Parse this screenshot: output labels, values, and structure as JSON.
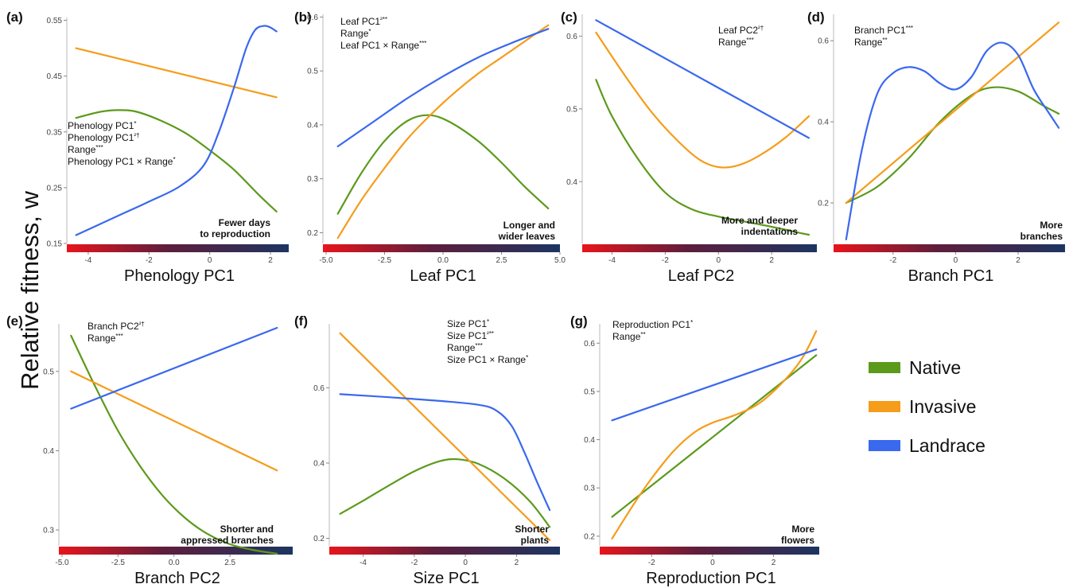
{
  "figure": {
    "ylabel": "Relative fitness, w",
    "legend": [
      {
        "name": "Native",
        "color": "#5c9a1c"
      },
      {
        "name": "Invasive",
        "color": "#f59c1a"
      },
      {
        "name": "Landrace",
        "color": "#3a68ee"
      }
    ]
  },
  "chart_data": [
    {
      "type": "line",
      "panel": "(a)",
      "xlabel": "Phenology PC1",
      "xlim": [
        -4.6,
        2.6
      ],
      "ylim": [
        0.15,
        0.555
      ],
      "xticks": [
        -4,
        -2,
        0,
        2
      ],
      "xtick_labels": [
        "-4",
        "-2",
        "0",
        "2"
      ],
      "yticks": [
        0.15,
        0.25,
        0.35,
        0.45,
        0.55
      ],
      "ytick_labels": [
        "0.15",
        "0.25",
        "0.35",
        "0.45",
        "0.55"
      ],
      "annotations": [
        "Phenology PC1*",
        "Phenology PC1²†",
        "Range***",
        "Phenology PC1 × Range*"
      ],
      "gradient_label": [
        "Fewer days",
        "to reproduction"
      ],
      "series": [
        {
          "name": "Native",
          "x": [
            -4.4,
            -3.6,
            -3.0,
            -2.4,
            -1.6,
            -0.8,
            0.0,
            0.8,
            1.6,
            2.2
          ],
          "y": [
            0.375,
            0.386,
            0.389,
            0.386,
            0.37,
            0.348,
            0.317,
            0.282,
            0.238,
            0.207
          ]
        },
        {
          "name": "Invasive",
          "x": [
            -4.4,
            2.2
          ],
          "y": [
            0.5,
            0.412
          ]
        },
        {
          "name": "Landrace",
          "x": [
            -4.4,
            -3.0,
            -2.0,
            -1.0,
            -0.2,
            0.3,
            0.8,
            1.2,
            1.5,
            1.8,
            2.0,
            2.2
          ],
          "y": [
            0.165,
            0.2,
            0.225,
            0.252,
            0.29,
            0.35,
            0.43,
            0.5,
            0.533,
            0.54,
            0.537,
            0.53
          ]
        }
      ]
    },
    {
      "type": "line",
      "panel": "(b)",
      "xlabel": "Leaf PC1",
      "xlim": [
        -5.0,
        5.0
      ],
      "ylim": [
        0.18,
        0.605
      ],
      "xticks": [
        -5,
        -2.5,
        0,
        2.5,
        5
      ],
      "xtick_labels": [
        "-5.0",
        "-2.5",
        "0.0",
        "2.5",
        "5.0"
      ],
      "yticks": [
        0.2,
        0.3,
        0.4,
        0.5,
        0.6
      ],
      "ytick_labels": [
        "0.2",
        "0.3",
        "0.4",
        "0.5",
        "0.6"
      ],
      "annotations": [
        "Leaf PC1²**",
        "Range*",
        "Leaf PC1 × Range***"
      ],
      "gradient_label": [
        "Longer and",
        "wider leaves"
      ],
      "series": [
        {
          "name": "Native",
          "x": [
            -4.5,
            -3.5,
            -2.5,
            -1.5,
            -0.6,
            0.3,
            1.5,
            2.5,
            3.5,
            4.5
          ],
          "y": [
            0.235,
            0.31,
            0.37,
            0.408,
            0.418,
            0.405,
            0.37,
            0.33,
            0.285,
            0.245
          ]
        },
        {
          "name": "Invasive",
          "x": [
            -4.5,
            -3.5,
            -2.5,
            -1.5,
            -0.5,
            0.5,
            1.5,
            2.5,
            3.5,
            4.5
          ],
          "y": [
            0.19,
            0.26,
            0.32,
            0.375,
            0.42,
            0.46,
            0.495,
            0.525,
            0.555,
            0.585
          ]
        },
        {
          "name": "Landrace",
          "x": [
            -4.5,
            -3.0,
            -1.5,
            0.0,
            1.5,
            3.0,
            4.5
          ],
          "y": [
            0.36,
            0.405,
            0.45,
            0.49,
            0.525,
            0.553,
            0.578
          ]
        }
      ]
    },
    {
      "type": "line",
      "panel": "(c)",
      "xlabel": "Leaf PC2",
      "xlim": [
        -5.0,
        3.7
      ],
      "ylim": [
        0.315,
        0.63
      ],
      "xticks": [
        -4,
        -2,
        0,
        2
      ],
      "xtick_labels": [
        "-4",
        "-2",
        "0",
        "2"
      ],
      "yticks": [
        0.4,
        0.5,
        0.6
      ],
      "ytick_labels": [
        "0.4",
        "0.5",
        "0.6"
      ],
      "annotations": [
        "Leaf PC2²†",
        "Range***"
      ],
      "gradient_label": [
        "More and deeper",
        "indentations"
      ],
      "series": [
        {
          "name": "Native",
          "x": [
            -4.6,
            -4.0,
            -3.0,
            -2.0,
            -1.0,
            0.0,
            1.0,
            2.0,
            3.0,
            3.4
          ],
          "y": [
            0.54,
            0.49,
            0.43,
            0.385,
            0.362,
            0.352,
            0.345,
            0.338,
            0.33,
            0.327
          ]
        },
        {
          "name": "Invasive",
          "x": [
            -4.6,
            -3.5,
            -2.5,
            -1.5,
            -0.7,
            0.0,
            0.7,
            1.5,
            2.5,
            3.4
          ],
          "y": [
            0.605,
            0.545,
            0.495,
            0.455,
            0.43,
            0.42,
            0.422,
            0.435,
            0.46,
            0.49
          ]
        },
        {
          "name": "Landrace",
          "x": [
            -4.6,
            3.4
          ],
          "y": [
            0.622,
            0.46
          ]
        }
      ]
    },
    {
      "type": "line",
      "panel": "(d)",
      "xlabel": "Branch PC1",
      "xlim": [
        -3.8,
        3.5
      ],
      "ylim": [
        0.1,
        0.665
      ],
      "xticks": [
        -2,
        0,
        2
      ],
      "xtick_labels": [
        "-2",
        "0",
        "2"
      ],
      "yticks": [
        0.2,
        0.4,
        0.6
      ],
      "ytick_labels": [
        "0.2",
        "0.4",
        "0.6"
      ],
      "annotations": [
        "Branch PC1***",
        "Range**"
      ],
      "gradient_label": [
        "More",
        "branches"
      ],
      "series": [
        {
          "name": "Native",
          "x": [
            -3.5,
            -2.5,
            -1.5,
            -0.5,
            0.5,
            1.2,
            2.0,
            2.8,
            3.3
          ],
          "y": [
            0.2,
            0.24,
            0.31,
            0.4,
            0.465,
            0.485,
            0.475,
            0.44,
            0.42
          ]
        },
        {
          "name": "Invasive",
          "x": [
            -3.5,
            3.3
          ],
          "y": [
            0.2,
            0.645
          ]
        },
        {
          "name": "Landrace",
          "x": [
            -3.5,
            -3.0,
            -2.5,
            -2.0,
            -1.5,
            -1.0,
            -0.5,
            0.0,
            0.5,
            1.0,
            1.5,
            2.0,
            2.5,
            3.0,
            3.3
          ],
          "y": [
            0.11,
            0.33,
            0.47,
            0.52,
            0.535,
            0.525,
            0.495,
            0.48,
            0.51,
            0.575,
            0.595,
            0.565,
            0.48,
            0.42,
            0.385
          ]
        }
      ]
    },
    {
      "type": "line",
      "panel": "(e)",
      "xlabel": "Branch PC2",
      "xlim": [
        -5.0,
        5.3
      ],
      "ylim": [
        0.28,
        0.56
      ],
      "xticks": [
        -5,
        -2.5,
        0,
        2.5
      ],
      "xtick_labels": [
        "-5.0",
        "-2.5",
        "0.0",
        "2.5"
      ],
      "yticks": [
        0.3,
        0.4,
        0.5
      ],
      "ytick_labels": [
        "0.3",
        "0.4",
        "0.5"
      ],
      "annotations": [
        "Branch PC2²†",
        "Range***"
      ],
      "gradient_label": [
        "Shorter and",
        "appressed branches"
      ],
      "series": [
        {
          "name": "Native",
          "x": [
            -4.6,
            -3.5,
            -2.5,
            -1.5,
            -0.5,
            0.5,
            1.5,
            2.5,
            3.5,
            4.6
          ],
          "y": [
            0.545,
            0.48,
            0.425,
            0.38,
            0.343,
            0.315,
            0.295,
            0.282,
            0.275,
            0.27
          ]
        },
        {
          "name": "Invasive",
          "x": [
            -4.6,
            4.6
          ],
          "y": [
            0.5,
            0.375
          ]
        },
        {
          "name": "Landrace",
          "x": [
            -4.6,
            4.6
          ],
          "y": [
            0.453,
            0.555
          ]
        }
      ]
    },
    {
      "type": "line",
      "panel": "(f)",
      "xlabel": "Size PC1",
      "xlim": [
        -5.2,
        3.7
      ],
      "ylim": [
        0.18,
        0.77
      ],
      "xticks": [
        -4,
        -2,
        0,
        2
      ],
      "xtick_labels": [
        "-4",
        "-2",
        "0",
        "2"
      ],
      "yticks": [
        0.2,
        0.4,
        0.6
      ],
      "ytick_labels": [
        "0.2",
        "0.4",
        "0.6"
      ],
      "annotations": [
        "Size PC1*",
        "Size PC1²**",
        "Range***",
        "Size PC1 × Range*"
      ],
      "gradient_label": [
        "Shorter",
        "plants"
      ],
      "series": [
        {
          "name": "Native",
          "x": [
            -4.9,
            -4.0,
            -3.0,
            -2.0,
            -1.0,
            -0.3,
            0.5,
            1.5,
            2.5,
            3.3
          ],
          "y": [
            0.265,
            0.3,
            0.34,
            0.378,
            0.405,
            0.41,
            0.398,
            0.36,
            0.3,
            0.23
          ]
        },
        {
          "name": "Invasive",
          "x": [
            -4.9,
            3.3
          ],
          "y": [
            0.745,
            0.195
          ]
        },
        {
          "name": "Landrace",
          "x": [
            -4.9,
            -3.0,
            -1.0,
            0.5,
            1.2,
            1.8,
            2.3,
            2.8,
            3.3
          ],
          "y": [
            0.583,
            0.575,
            0.565,
            0.555,
            0.54,
            0.5,
            0.43,
            0.35,
            0.275
          ]
        }
      ]
    },
    {
      "type": "line",
      "panel": "(g)",
      "xlabel": "Reproduction PC1",
      "xlim": [
        -3.6,
        3.5
      ],
      "ylim": [
        0.18,
        0.64
      ],
      "xticks": [
        -2,
        0,
        2
      ],
      "xtick_labels": [
        "-2",
        "0",
        "2"
      ],
      "yticks": [
        0.2,
        0.3,
        0.4,
        0.5,
        0.6
      ],
      "ytick_labels": [
        "0.2",
        "0.3",
        "0.4",
        "0.5",
        "0.6"
      ],
      "annotations": [
        "Reproduction PC1*",
        "Range**"
      ],
      "gradient_label": [
        "More",
        "flowers"
      ],
      "series": [
        {
          "name": "Native",
          "x": [
            -3.3,
            3.4
          ],
          "y": [
            0.24,
            0.575
          ]
        },
        {
          "name": "Invasive",
          "x": [
            -3.3,
            -2.6,
            -2.0,
            -1.3,
            -0.6,
            0.0,
            0.7,
            1.4,
            2.0,
            2.6,
            3.0,
            3.4
          ],
          "y": [
            0.195,
            0.265,
            0.32,
            0.375,
            0.415,
            0.435,
            0.45,
            0.47,
            0.5,
            0.54,
            0.575,
            0.625
          ]
        },
        {
          "name": "Landrace",
          "x": [
            -3.3,
            3.4
          ],
          "y": [
            0.44,
            0.587
          ]
        }
      ]
    }
  ]
}
